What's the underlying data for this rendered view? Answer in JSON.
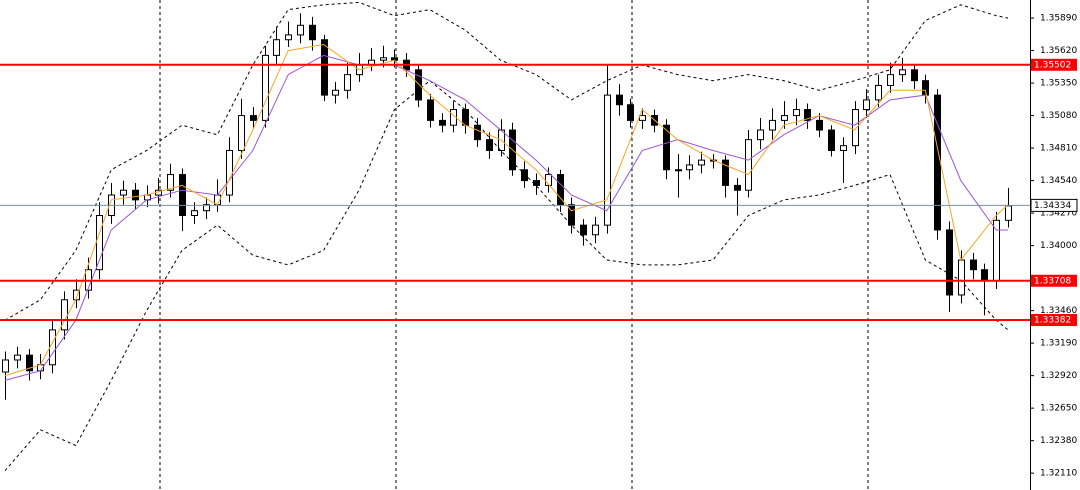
{
  "chart_data": {
    "type": "candlestick",
    "ylim": [
      1.3197,
      1.3604
    ],
    "yticks": [
      {
        "value": 1.3589,
        "label": "1.35890"
      },
      {
        "value": 1.3562,
        "label": "1.35620"
      },
      {
        "value": 1.3535,
        "label": "1.35350"
      },
      {
        "value": 1.3508,
        "label": "1.35080"
      },
      {
        "value": 1.3481,
        "label": "1.34810"
      },
      {
        "value": 1.3454,
        "label": "1.34540"
      },
      {
        "value": 1.3427,
        "label": "1.34270"
      },
      {
        "value": 1.34,
        "label": "1.34000"
      },
      {
        "value": 1.3346,
        "label": "1.33460"
      },
      {
        "value": 1.3319,
        "label": "1.33190"
      },
      {
        "value": 1.3292,
        "label": "1.32920"
      },
      {
        "value": 1.3265,
        "label": "1.32650"
      },
      {
        "value": 1.3238,
        "label": "1.32380"
      },
      {
        "value": 1.3211,
        "label": "1.32110"
      }
    ],
    "up_color": "#ffffff",
    "down_color": "#000000",
    "open": [
      1.3295,
      1.3305,
      1.3309,
      1.3296,
      1.3301,
      1.333,
      1.3355,
      1.3363,
      1.338,
      1.3425,
      1.3442,
      1.3446,
      1.3438,
      1.3442,
      1.3446,
      1.3459,
      1.3425,
      1.3429,
      1.3434,
      1.3442,
      1.3479,
      1.3508,
      1.3504,
      1.3558,
      1.3571,
      1.3575,
      1.3583,
      1.3571,
      1.3525,
      1.3529,
      1.3542,
      1.355,
      1.3554,
      1.3556,
      1.3554,
      1.3546,
      1.3521,
      1.3504,
      1.35,
      1.3513,
      1.35,
      1.3488,
      1.3479,
      1.3496,
      1.3463,
      1.3454,
      1.345,
      1.3459,
      1.3434,
      1.3417,
      1.3409,
      1.3417,
      1.3525,
      1.3517,
      1.3504,
      1.3508,
      1.35,
      1.3463,
      1.3463,
      1.3467,
      1.3471,
      1.3471,
      1.345,
      1.3446,
      1.3488,
      1.3496,
      1.3504,
      1.3508,
      1.3513,
      1.3504,
      1.3496,
      1.3479,
      1.3483,
      1.3513,
      1.3521,
      1.3533,
      1.3542,
      1.3546,
      1.3537,
      1.3525,
      1.3413,
      1.3359,
      1.3388,
      1.338,
      1.3371,
      1.3421
    ],
    "high": [
      1.3312,
      1.3316,
      1.3314,
      1.331,
      1.3338,
      1.3362,
      1.3372,
      1.339,
      1.3436,
      1.3452,
      1.3454,
      1.3452,
      1.345,
      1.3456,
      1.3468,
      1.3464,
      1.3436,
      1.344,
      1.3455,
      1.349,
      1.3522,
      1.3515,
      1.3566,
      1.3582,
      1.3586,
      1.3593,
      1.359,
      1.3575,
      1.3536,
      1.3552,
      1.356,
      1.3564,
      1.3566,
      1.3563,
      1.356,
      1.355,
      1.3526,
      1.351,
      1.352,
      1.3518,
      1.3506,
      1.3494,
      1.3505,
      1.3502,
      1.347,
      1.346,
      1.3465,
      1.3463,
      1.344,
      1.3422,
      1.3424,
      1.355,
      1.3534,
      1.3522,
      1.3514,
      1.3513,
      1.3505,
      1.3476,
      1.3475,
      1.3478,
      1.3476,
      1.3475,
      1.3456,
      1.3496,
      1.3506,
      1.3514,
      1.352,
      1.3522,
      1.3518,
      1.351,
      1.35,
      1.349,
      1.352,
      1.353,
      1.3542,
      1.3552,
      1.3556,
      1.3551,
      1.3542,
      1.353,
      1.342,
      1.3396,
      1.3394,
      1.3385,
      1.3428,
      1.3448
    ],
    "low": [
      1.3272,
      1.3298,
      1.3288,
      1.3289,
      1.3294,
      1.3322,
      1.3348,
      1.3356,
      1.3372,
      1.3418,
      1.3434,
      1.343,
      1.3432,
      1.3435,
      1.344,
      1.3412,
      1.3418,
      1.3422,
      1.3428,
      1.3436,
      1.3472,
      1.3497,
      1.3498,
      1.355,
      1.3565,
      1.3568,
      1.3562,
      1.352,
      1.3518,
      1.3522,
      1.3536,
      1.3545,
      1.3548,
      1.3548,
      1.354,
      1.3515,
      1.3498,
      1.3494,
      1.3494,
      1.3493,
      1.3482,
      1.3472,
      1.3474,
      1.3458,
      1.3448,
      1.3442,
      1.3444,
      1.3428,
      1.341,
      1.34,
      1.3402,
      1.341,
      1.3508,
      1.3498,
      1.3497,
      1.3494,
      1.3455,
      1.344,
      1.3455,
      1.346,
      1.3464,
      1.344,
      1.3425,
      1.344,
      1.348,
      1.3488,
      1.3497,
      1.35,
      1.3497,
      1.349,
      1.3474,
      1.3452,
      1.3476,
      1.3506,
      1.3515,
      1.3527,
      1.3536,
      1.353,
      1.3518,
      1.3405,
      1.3345,
      1.3352,
      1.3372,
      1.3342,
      1.3364,
      1.3415
    ],
    "close": [
      1.3305,
      1.3309,
      1.3296,
      1.3301,
      1.333,
      1.3355,
      1.3363,
      1.338,
      1.3425,
      1.3442,
      1.3446,
      1.3438,
      1.3442,
      1.3446,
      1.3459,
      1.3425,
      1.3429,
      1.3434,
      1.3442,
      1.3479,
      1.3508,
      1.3504,
      1.3558,
      1.3571,
      1.3575,
      1.3583,
      1.3571,
      1.3525,
      1.3529,
      1.3542,
      1.355,
      1.3554,
      1.3556,
      1.3554,
      1.3546,
      1.3521,
      1.3504,
      1.35,
      1.3513,
      1.35,
      1.3488,
      1.3479,
      1.3496,
      1.3463,
      1.3454,
      1.345,
      1.3459,
      1.3434,
      1.3417,
      1.3409,
      1.3417,
      1.3525,
      1.3517,
      1.3504,
      1.3508,
      1.35,
      1.3463,
      1.3463,
      1.3467,
      1.3471,
      1.3471,
      1.345,
      1.3446,
      1.3488,
      1.3496,
      1.3504,
      1.3508,
      1.3513,
      1.3504,
      1.3496,
      1.3479,
      1.3483,
      1.3513,
      1.3521,
      1.3533,
      1.3542,
      1.3546,
      1.3537,
      1.3525,
      1.3413,
      1.3359,
      1.3388,
      1.338,
      1.3371,
      1.3421,
      1.3433
    ],
    "overlay_x": [
      0,
      3,
      6,
      9,
      12,
      15,
      18,
      21,
      24,
      27,
      30,
      33,
      36,
      39,
      42,
      45,
      48,
      51,
      54,
      57,
      60,
      63,
      66,
      69,
      72,
      75,
      78,
      81,
      84,
      85
    ],
    "overlays": [
      {
        "color": "#000000",
        "dashed": true,
        "values": [
          1.3338,
          1.3355,
          1.3396,
          1.3463,
          1.3479,
          1.35,
          1.3492,
          1.355,
          1.3596,
          1.36,
          1.3602,
          1.3591,
          1.3596,
          1.3579,
          1.3554,
          1.3542,
          1.3521,
          1.3537,
          1.355,
          1.3542,
          1.3537,
          1.3542,
          1.3537,
          1.3529,
          1.3537,
          1.3546,
          1.3587,
          1.36,
          1.3591,
          1.3589
        ]
      },
      {
        "color": "#000000",
        "dashed": true,
        "values": [
          1.3213,
          1.3247,
          1.3234,
          1.3288,
          1.3346,
          1.3396,
          1.3417,
          1.3392,
          1.3384,
          1.3396,
          1.3446,
          1.3513,
          1.3537,
          1.3513,
          1.3479,
          1.345,
          1.3417,
          1.3388,
          1.3384,
          1.3384,
          1.3388,
          1.3425,
          1.3438,
          1.3442,
          1.345,
          1.3459,
          1.3388,
          1.3371,
          1.3338,
          1.333
        ]
      },
      {
        "color": "#9b55d9",
        "dashed": false,
        "values": [
          1.3288,
          1.3296,
          1.3338,
          1.3413,
          1.3438,
          1.3446,
          1.3442,
          1.3479,
          1.3542,
          1.3558,
          1.355,
          1.355,
          1.3537,
          1.3521,
          1.3496,
          1.3471,
          1.3442,
          1.3429,
          1.3479,
          1.3488,
          1.3479,
          1.3471,
          1.3492,
          1.3508,
          1.35,
          1.3521,
          1.3525,
          1.3454,
          1.3413,
          1.3413
        ]
      },
      {
        "color": "#f5a623",
        "dashed": false,
        "values": [
          1.3292,
          1.3301,
          1.3355,
          1.3438,
          1.3442,
          1.345,
          1.3434,
          1.3496,
          1.3562,
          1.3567,
          1.3546,
          1.3554,
          1.3525,
          1.35,
          1.3488,
          1.3463,
          1.3429,
          1.3438,
          1.3513,
          1.3488,
          1.3471,
          1.3459,
          1.35,
          1.3508,
          1.3496,
          1.3529,
          1.3529,
          1.3388,
          1.3425,
          1.3434
        ]
      }
    ],
    "levels": [
      {
        "value": 1.35502,
        "color": "#ff0000"
      },
      {
        "value": 1.33708,
        "color": "#ff0000"
      },
      {
        "value": 1.33382,
        "color": "#ff0000"
      }
    ],
    "price_line": {
      "value": 1.34334,
      "color": "#7a8fa0"
    }
  }
}
